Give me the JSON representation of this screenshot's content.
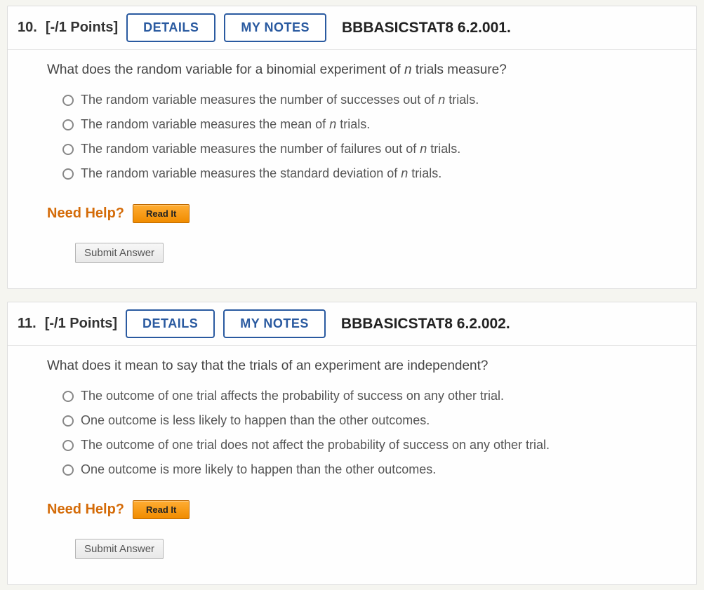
{
  "questions": [
    {
      "number": "10.",
      "points": "[-/1 Points]",
      "details_label": "DETAILS",
      "notes_label": "MY NOTES",
      "reference": "BBBASICSTAT8 6.2.001.",
      "prompt_pre": "What does the random variable for a binomial experiment of ",
      "prompt_var": "n",
      "prompt_post": " trials measure?",
      "options": [
        {
          "pre": "The random variable measures the number of successes out of ",
          "var": "n",
          "post": " trials."
        },
        {
          "pre": "The random variable measures the mean of ",
          "var": "n",
          "post": " trials."
        },
        {
          "pre": "The random variable measures the number of failures out of ",
          "var": "n",
          "post": " trials."
        },
        {
          "pre": "The random variable measures the standard deviation of ",
          "var": "n",
          "post": " trials."
        }
      ],
      "need_help": "Need Help?",
      "read_it": "Read It",
      "submit": "Submit Answer"
    },
    {
      "number": "11.",
      "points": "[-/1 Points]",
      "details_label": "DETAILS",
      "notes_label": "MY NOTES",
      "reference": "BBBASICSTAT8 6.2.002.",
      "prompt_pre": "What does it mean to say that the trials of an experiment are independent?",
      "prompt_var": "",
      "prompt_post": "",
      "options": [
        {
          "pre": "The outcome of one trial affects the probability of success on any other trial.",
          "var": "",
          "post": ""
        },
        {
          "pre": "One outcome is less likely to happen than the other outcomes.",
          "var": "",
          "post": ""
        },
        {
          "pre": "The outcome of one trial does not affect the probability of success on any other trial.",
          "var": "",
          "post": ""
        },
        {
          "pre": "One outcome is more likely to happen than the other outcomes.",
          "var": "",
          "post": ""
        }
      ],
      "need_help": "Need Help?",
      "read_it": "Read It",
      "submit": "Submit Answer"
    }
  ],
  "colors": {
    "button_border": "#2a5aa0",
    "help_orange": "#d46b08",
    "readit_bg_top": "#ffad33",
    "readit_bg_bottom": "#f08c00"
  }
}
